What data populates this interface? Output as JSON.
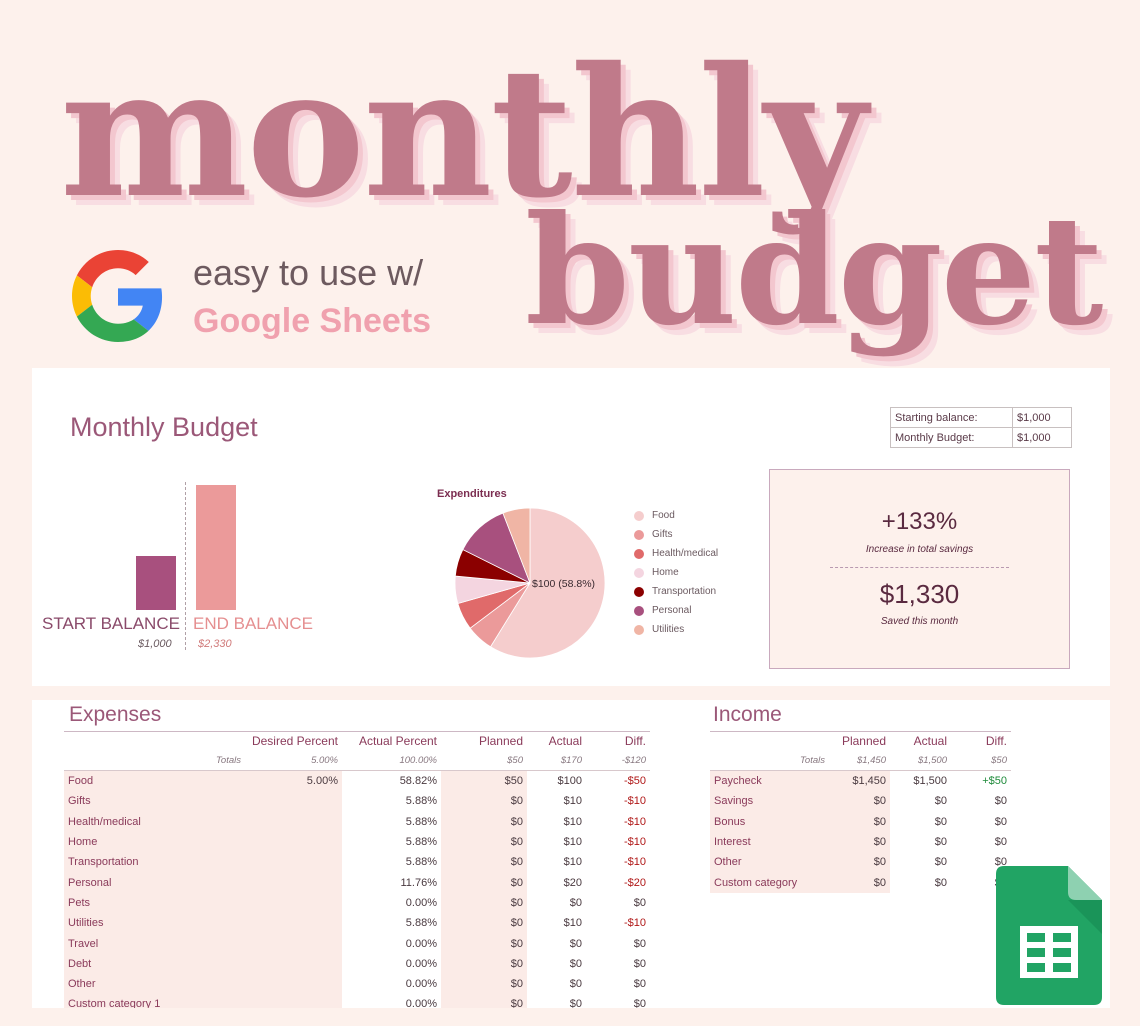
{
  "hero": {
    "line1": "monthly",
    "line2": "budget"
  },
  "tagline": {
    "line1": "easy to use w/",
    "line2": "Google Sheets"
  },
  "icons": {
    "google": "google-g-logo-icon",
    "sheets": "google-sheets-icon"
  },
  "colors": {
    "accent": "#c07a8a",
    "bar_start": "#a8507e",
    "bar_end": "#eb9a9a",
    "panel_bg": "#fdf1ec"
  },
  "dashboard": {
    "title": "Monthly Budget",
    "summary": [
      {
        "label": "Starting balance:",
        "value": "$1,000"
      },
      {
        "label": "Monthly Budget:",
        "value": "$1,000"
      }
    ],
    "balance_chart": {
      "start_label": "START BALANCE",
      "start_value": "$1,000",
      "end_label": "END BALANCE",
      "end_value": "$2,330"
    },
    "savings": {
      "increase": "+133%",
      "increase_label": "Increase in total savings",
      "amount": "$1,330",
      "amount_label": "Saved this month"
    }
  },
  "chart_data": [
    {
      "type": "bar",
      "categories": [
        "START BALANCE",
        "END BALANCE"
      ],
      "values": [
        1000,
        2330
      ],
      "colors": [
        "#a8507e",
        "#eb9a9a"
      ],
      "ylim": [
        0,
        2330
      ]
    },
    {
      "type": "pie",
      "title": "Expenditures",
      "categories": [
        "Food",
        "Gifts",
        "Health/medical",
        "Home",
        "Transportation",
        "Personal",
        "Utilities"
      ],
      "values": [
        100,
        10,
        10,
        10,
        10,
        20,
        10
      ],
      "colors": [
        "#f5cdcd",
        "#eb9a9a",
        "#e06a6a",
        "#f4d5e0",
        "#8b0000",
        "#a8507e",
        "#f0b5a5"
      ],
      "slice_label": "$100 (58.8%)"
    }
  ],
  "expenses": {
    "title": "Expenses",
    "headers": [
      "",
      "Desired Percent",
      "Actual Percent",
      "Planned",
      "Actual",
      "Diff."
    ],
    "totals": [
      "Totals",
      "5.00%",
      "100.00%",
      "$50",
      "$170",
      "-$120"
    ],
    "rows": [
      [
        "Food",
        "5.00%",
        "58.82%",
        "$50",
        "$100",
        "-$50"
      ],
      [
        "Gifts",
        "",
        "5.88%",
        "$0",
        "$10",
        "-$10"
      ],
      [
        "Health/medical",
        "",
        "5.88%",
        "$0",
        "$10",
        "-$10"
      ],
      [
        "Home",
        "",
        "5.88%",
        "$0",
        "$10",
        "-$10"
      ],
      [
        "Transportation",
        "",
        "5.88%",
        "$0",
        "$10",
        "-$10"
      ],
      [
        "Personal",
        "",
        "11.76%",
        "$0",
        "$20",
        "-$20"
      ],
      [
        "Pets",
        "",
        "0.00%",
        "$0",
        "$0",
        "$0"
      ],
      [
        "Utilities",
        "",
        "5.88%",
        "$0",
        "$10",
        "-$10"
      ],
      [
        "Travel",
        "",
        "0.00%",
        "$0",
        "$0",
        "$0"
      ],
      [
        "Debt",
        "",
        "0.00%",
        "$0",
        "$0",
        "$0"
      ],
      [
        "Other",
        "",
        "0.00%",
        "$0",
        "$0",
        "$0"
      ],
      [
        "Custom category 1",
        "",
        "0.00%",
        "$0",
        "$0",
        "$0"
      ]
    ]
  },
  "income": {
    "title": "Income",
    "headers": [
      "",
      "Planned",
      "Actual",
      "Diff."
    ],
    "totals": [
      "Totals",
      "$1,450",
      "$1,500",
      "$50"
    ],
    "rows": [
      [
        "Paycheck",
        "$1,450",
        "$1,500",
        "+$50"
      ],
      [
        "Savings",
        "$0",
        "$0",
        "$0"
      ],
      [
        "Bonus",
        "$0",
        "$0",
        "$0"
      ],
      [
        "Interest",
        "$0",
        "$0",
        "$0"
      ],
      [
        "Other",
        "$0",
        "$0",
        "$0"
      ],
      [
        "Custom category",
        "$0",
        "$0",
        "$0"
      ]
    ]
  }
}
